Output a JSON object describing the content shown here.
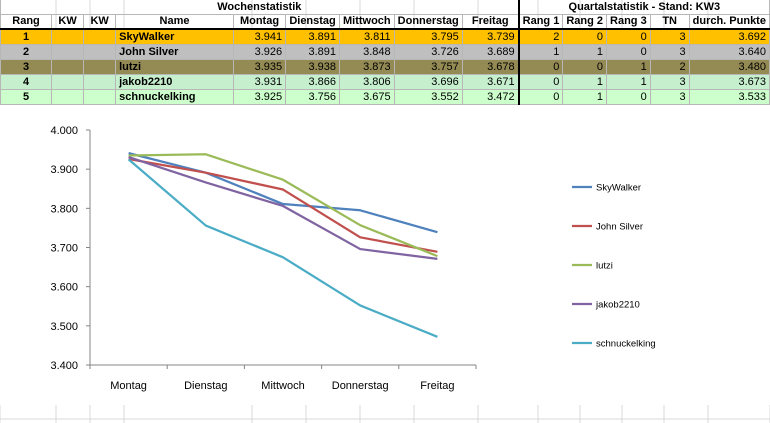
{
  "table": {
    "sections": {
      "weekly": "Wochenstatistik",
      "quarterly": "Quartalstatistik - Stand:  KW3"
    },
    "headers": [
      "Rang",
      "KW",
      "KW",
      "Name",
      "Montag",
      "Dienstag",
      "Mittwoch",
      "Donnerstag",
      "Freitag",
      "Rang 1",
      "Rang 2",
      "Rang 3",
      "TN",
      "durch. Punkte"
    ],
    "rows": [
      {
        "rang": "1",
        "kw1": "",
        "kw2": "",
        "name": "SkyWalker",
        "mo": "3.941",
        "di": "3.891",
        "mi": "3.811",
        "do": "3.795",
        "fr": "3.739",
        "r1": "2",
        "r2": "0",
        "r3": "0",
        "tn": "3",
        "avg": "3.692",
        "color": "#ffc000"
      },
      {
        "rang": "2",
        "kw1": "",
        "kw2": "",
        "name": "John Silver",
        "mo": "3.926",
        "di": "3.891",
        "mi": "3.848",
        "do": "3.726",
        "fr": "3.689",
        "r1": "1",
        "r2": "1",
        "r3": "0",
        "tn": "3",
        "avg": "3.640",
        "color": "#bfbfbf"
      },
      {
        "rang": "3",
        "kw1": "",
        "kw2": "",
        "name": "lutzi",
        "mo": "3.935",
        "di": "3.938",
        "mi": "3.873",
        "do": "3.757",
        "fr": "3.678",
        "r1": "0",
        "r2": "0",
        "r3": "1",
        "tn": "2",
        "avg": "3.480",
        "color": "#948a54"
      },
      {
        "rang": "4",
        "kw1": "",
        "kw2": "",
        "name": "jakob2210",
        "mo": "3.931",
        "di": "3.866",
        "mi": "3.806",
        "do": "3.696",
        "fr": "3.671",
        "r1": "0",
        "r2": "1",
        "r3": "1",
        "tn": "3",
        "avg": "3.673",
        "color": "#c6efce"
      },
      {
        "rang": "5",
        "kw1": "",
        "kw2": "",
        "name": "schnuckelking",
        "mo": "3.925",
        "di": "3.756",
        "mi": "3.675",
        "do": "3.552",
        "fr": "3.472",
        "r1": "0",
        "r2": "1",
        "r3": "0",
        "tn": "3",
        "avg": "3.533",
        "color": "#ccffcc"
      }
    ]
  },
  "chart_data": {
    "type": "line",
    "categories": [
      "Montag",
      "Dienstag",
      "Mittwoch",
      "Donnerstag",
      "Freitag"
    ],
    "series": [
      {
        "name": "SkyWalker",
        "values": [
          3.941,
          3.891,
          3.811,
          3.795,
          3.739
        ],
        "color": "#4f81bd"
      },
      {
        "name": "John Silver",
        "values": [
          3.926,
          3.891,
          3.848,
          3.726,
          3.689
        ],
        "color": "#c0504d"
      },
      {
        "name": "lutzi",
        "values": [
          3.935,
          3.938,
          3.873,
          3.757,
          3.678
        ],
        "color": "#9bbb59"
      },
      {
        "name": "jakob2210",
        "values": [
          3.931,
          3.866,
          3.806,
          3.696,
          3.671
        ],
        "color": "#8064a2"
      },
      {
        "name": "schnuckelking",
        "values": [
          3.925,
          3.756,
          3.675,
          3.552,
          3.472
        ],
        "color": "#4bacc6"
      }
    ],
    "yticks": [
      "3.400",
      "3.500",
      "3.600",
      "3.700",
      "3.800",
      "3.900",
      "4.000"
    ],
    "ylim": [
      3.4,
      4.0
    ],
    "legend_position": "right",
    "grid": false
  }
}
